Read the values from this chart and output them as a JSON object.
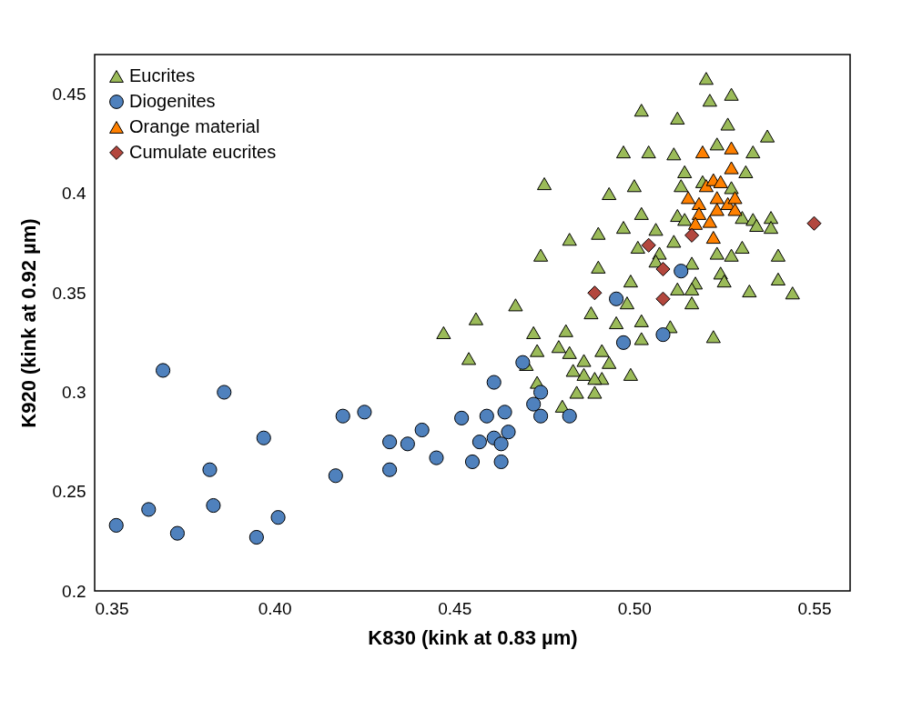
{
  "chart_data": {
    "type": "scatter",
    "xlabel": "K830 (kink at 0.83 µm)",
    "ylabel": "K920 (kink at 0.92 µm)",
    "xlim": [
      0.35,
      0.56
    ],
    "xticks": [
      {
        "value": 0.35,
        "label": "0.35"
      },
      {
        "value": 0.4,
        "label": "0.40"
      },
      {
        "value": 0.45,
        "label": "0.45"
      },
      {
        "value": 0.5,
        "label": "0.50"
      },
      {
        "value": 0.55,
        "label": "0.55"
      }
    ],
    "ylim": [
      0.2,
      0.47
    ],
    "yticks": [
      0.2,
      0.25,
      0.3,
      0.35,
      0.4,
      0.45
    ],
    "grid": false,
    "legend": "top left",
    "series": [
      {
        "name": "Eucrites",
        "color": "#9bbb59",
        "marker": "triangle",
        "x": [
          0.52,
          0.521,
          0.527,
          0.502,
          0.512,
          0.526,
          0.537,
          0.497,
          0.504,
          0.511,
          0.523,
          0.533,
          0.514,
          0.531,
          0.513,
          0.493,
          0.5,
          0.519,
          0.527,
          0.502,
          0.497,
          0.49,
          0.506,
          0.512,
          0.514,
          0.53,
          0.533,
          0.538,
          0.538,
          0.534,
          0.501,
          0.507,
          0.511,
          0.523,
          0.53,
          0.527,
          0.54,
          0.49,
          0.499,
          0.506,
          0.516,
          0.524,
          0.525,
          0.517,
          0.512,
          0.516,
          0.516,
          0.498,
          0.488,
          0.495,
          0.502,
          0.51,
          0.502,
          0.522,
          0.532,
          0.54,
          0.544,
          0.491,
          0.486,
          0.493,
          0.499,
          0.491,
          0.486,
          0.489,
          0.484,
          0.482,
          0.474,
          0.467,
          0.456,
          0.447,
          0.472,
          0.481,
          0.454,
          0.473,
          0.479,
          0.482,
          0.483,
          0.489,
          0.47,
          0.473,
          0.48,
          0.475
        ],
        "values": [
          0.458,
          0.447,
          0.45,
          0.442,
          0.438,
          0.435,
          0.429,
          0.421,
          0.421,
          0.42,
          0.425,
          0.421,
          0.411,
          0.411,
          0.404,
          0.4,
          0.404,
          0.406,
          0.403,
          0.39,
          0.383,
          0.38,
          0.382,
          0.389,
          0.387,
          0.388,
          0.387,
          0.388,
          0.383,
          0.384,
          0.373,
          0.37,
          0.376,
          0.37,
          0.373,
          0.369,
          0.369,
          0.363,
          0.356,
          0.366,
          0.365,
          0.36,
          0.356,
          0.355,
          0.352,
          0.352,
          0.345,
          0.345,
          0.34,
          0.335,
          0.336,
          0.333,
          0.327,
          0.328,
          0.351,
          0.357,
          0.35,
          0.321,
          0.316,
          0.315,
          0.309,
          0.307,
          0.309,
          0.3,
          0.3,
          0.377,
          0.369,
          0.344,
          0.337,
          0.33,
          0.33,
          0.331,
          0.317,
          0.321,
          0.323,
          0.32,
          0.311,
          0.307,
          0.314,
          0.305,
          0.293,
          0.405
        ]
      },
      {
        "name": "Diogenites",
        "color": "#4f81bd",
        "marker": "circle",
        "x": [
          0.356,
          0.365,
          0.373,
          0.369,
          0.383,
          0.386,
          0.382,
          0.397,
          0.395,
          0.401,
          0.417,
          0.419,
          0.425,
          0.432,
          0.432,
          0.437,
          0.441,
          0.445,
          0.452,
          0.455,
          0.457,
          0.459,
          0.461,
          0.463,
          0.464,
          0.463,
          0.465,
          0.461,
          0.469,
          0.474,
          0.472,
          0.474,
          0.482,
          0.495,
          0.497,
          0.508,
          0.513
        ],
        "values": [
          0.233,
          0.241,
          0.229,
          0.311,
          0.243,
          0.3,
          0.261,
          0.277,
          0.227,
          0.237,
          0.258,
          0.288,
          0.29,
          0.261,
          0.275,
          0.274,
          0.281,
          0.267,
          0.287,
          0.265,
          0.275,
          0.288,
          0.277,
          0.265,
          0.29,
          0.274,
          0.28,
          0.305,
          0.315,
          0.3,
          0.294,
          0.288,
          0.288,
          0.347,
          0.325,
          0.329,
          0.361
        ]
      },
      {
        "name": "Orange material",
        "color": "#ff8000",
        "marker": "triangle",
        "x": [
          0.519,
          0.527,
          0.527,
          0.52,
          0.522,
          0.524,
          0.515,
          0.518,
          0.523,
          0.526,
          0.528,
          0.518,
          0.523,
          0.517,
          0.521,
          0.522,
          0.528
        ],
        "values": [
          0.421,
          0.423,
          0.413,
          0.404,
          0.407,
          0.406,
          0.398,
          0.395,
          0.398,
          0.395,
          0.398,
          0.39,
          0.392,
          0.385,
          0.386,
          0.378,
          0.392
        ]
      },
      {
        "name": "Cumulate eucrites",
        "color": "#b3473e",
        "marker": "diamond",
        "x": [
          0.489,
          0.504,
          0.508,
          0.508,
          0.516,
          0.55
        ],
        "values": [
          0.35,
          0.374,
          0.362,
          0.347,
          0.379,
          0.385
        ]
      }
    ]
  }
}
